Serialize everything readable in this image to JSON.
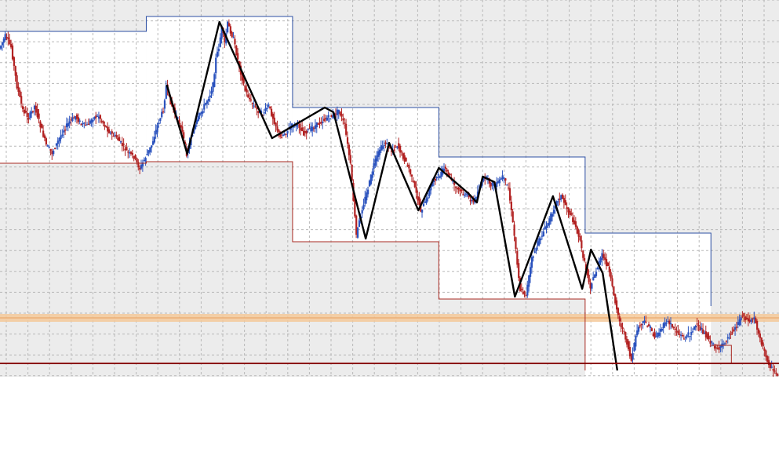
{
  "chart_data": {
    "type": "candlestick",
    "title": "",
    "xlabel": "",
    "ylabel": "",
    "background": "#ececec",
    "grid": true,
    "grid_style": "dashed",
    "colors": {
      "bull": "#2a52be",
      "bear": "#b22222",
      "upper_channel": "#2c4fa3",
      "lower_channel": "#a82a22",
      "zigzag": "#000000",
      "support_line": "#8b0000",
      "resistance_band": "#f5c99a",
      "grid": "#b8b8b8"
    },
    "price_path": [
      [
        0,
        62
      ],
      [
        2,
        46
      ],
      [
        4,
        60
      ],
      [
        6,
        110
      ],
      [
        8,
        140
      ],
      [
        10,
        150
      ],
      [
        12,
        135
      ],
      [
        14,
        160
      ],
      [
        16,
        185
      ],
      [
        18,
        195
      ],
      [
        20,
        180
      ],
      [
        22,
        165
      ],
      [
        24,
        155
      ],
      [
        26,
        148
      ],
      [
        28,
        158
      ],
      [
        30,
        160
      ],
      [
        32,
        150
      ],
      [
        34,
        148
      ],
      [
        36,
        160
      ],
      [
        38,
        170
      ],
      [
        40,
        175
      ],
      [
        42,
        185
      ],
      [
        44,
        195
      ],
      [
        46,
        200
      ],
      [
        48,
        215
      ],
      [
        50,
        200
      ],
      [
        52,
        185
      ],
      [
        54,
        160
      ],
      [
        56,
        140
      ],
      [
        57,
        110
      ],
      [
        58,
        125
      ],
      [
        60,
        145
      ],
      [
        62,
        160
      ],
      [
        64,
        196
      ],
      [
        66,
        170
      ],
      [
        68,
        150
      ],
      [
        70,
        135
      ],
      [
        72,
        120
      ],
      [
        73,
        108
      ],
      [
        74,
        75
      ],
      [
        75,
        60
      ],
      [
        76,
        35
      ],
      [
        77,
        55
      ],
      [
        78,
        30
      ],
      [
        80,
        50
      ],
      [
        82,
        85
      ],
      [
        84,
        115
      ],
      [
        86,
        130
      ],
      [
        88,
        140
      ],
      [
        90,
        145
      ],
      [
        92,
        135
      ],
      [
        94,
        155
      ],
      [
        96,
        175
      ],
      [
        98,
        168
      ],
      [
        100,
        160
      ],
      [
        102,
        158
      ],
      [
        104,
        170
      ],
      [
        106,
        165
      ],
      [
        108,
        160
      ],
      [
        110,
        155
      ],
      [
        112,
        150
      ],
      [
        114,
        148
      ],
      [
        116,
        140
      ],
      [
        118,
        160
      ],
      [
        120,
        210
      ],
      [
        122,
        300
      ],
      [
        124,
        265
      ],
      [
        126,
        240
      ],
      [
        128,
        210
      ],
      [
        130,
        190
      ],
      [
        132,
        182
      ],
      [
        134,
        192
      ],
      [
        136,
        185
      ],
      [
        138,
        200
      ],
      [
        140,
        215
      ],
      [
        142,
        240
      ],
      [
        144,
        268
      ],
      [
        146,
        255
      ],
      [
        148,
        230
      ],
      [
        150,
        225
      ],
      [
        152,
        215
      ],
      [
        154,
        225
      ],
      [
        156,
        240
      ],
      [
        158,
        245
      ],
      [
        160,
        250
      ],
      [
        162,
        258
      ],
      [
        164,
        240
      ],
      [
        166,
        225
      ],
      [
        168,
        235
      ],
      [
        170,
        235
      ],
      [
        172,
        225
      ],
      [
        174,
        240
      ],
      [
        176,
        300
      ],
      [
        178,
        370
      ],
      [
        180,
        375
      ],
      [
        182,
        330
      ],
      [
        184,
        310
      ],
      [
        186,
        295
      ],
      [
        188,
        280
      ],
      [
        190,
        260
      ],
      [
        192,
        250
      ],
      [
        194,
        265
      ],
      [
        196,
        280
      ],
      [
        198,
        300
      ],
      [
        200,
        335
      ],
      [
        202,
        365
      ],
      [
        204,
        345
      ],
      [
        206,
        325
      ],
      [
        208,
        340
      ],
      [
        210,
        375
      ],
      [
        212,
        410
      ],
      [
        214,
        430
      ],
      [
        216,
        460
      ],
      [
        218,
        420
      ],
      [
        220,
        410
      ],
      [
        222,
        415
      ],
      [
        224,
        430
      ],
      [
        226,
        420
      ],
      [
        228,
        410
      ],
      [
        230,
        415
      ],
      [
        232,
        425
      ],
      [
        234,
        430
      ],
      [
        236,
        425
      ],
      [
        238,
        415
      ],
      [
        240,
        420
      ],
      [
        242,
        430
      ],
      [
        244,
        440
      ],
      [
        246,
        445
      ],
      [
        248,
        435
      ],
      [
        250,
        425
      ],
      [
        252,
        415
      ],
      [
        254,
        400
      ],
      [
        256,
        410
      ],
      [
        258,
        405
      ],
      [
        260,
        430
      ],
      [
        262,
        455
      ],
      [
        264,
        470
      ],
      [
        266,
        478
      ]
    ],
    "zigzag": [
      [
        57,
        108
      ],
      [
        64,
        196
      ],
      [
        75,
        28
      ],
      [
        93,
        176
      ],
      [
        111,
        137
      ],
      [
        114,
        143
      ],
      [
        125,
        304
      ],
      [
        133,
        182
      ],
      [
        143,
        268
      ],
      [
        150,
        214
      ],
      [
        160,
        246
      ],
      [
        163,
        258
      ],
      [
        165,
        225
      ],
      [
        169,
        232
      ],
      [
        176,
        378
      ],
      [
        189,
        250
      ],
      [
        199,
        368
      ],
      [
        202,
        318
      ],
      [
        206,
        348
      ],
      [
        211,
        472
      ]
    ],
    "upper_channel": [
      [
        0,
        40
      ],
      [
        50,
        40
      ],
      [
        50,
        21
      ],
      [
        100,
        21
      ],
      [
        100,
        137
      ],
      [
        150,
        137
      ],
      [
        150,
        200
      ],
      [
        200,
        200
      ],
      [
        200,
        297
      ],
      [
        243,
        297
      ],
      [
        243,
        390
      ]
    ],
    "lower_channel": [
      [
        0,
        208
      ],
      [
        50,
        208
      ],
      [
        50,
        206
      ],
      [
        100,
        206
      ],
      [
        100,
        308
      ],
      [
        150,
        308
      ],
      [
        150,
        381
      ],
      [
        200,
        381
      ],
      [
        200,
        472
      ]
    ],
    "extra_lines": [
      [
        [
          243,
          440
        ],
        [
          250,
          440
        ],
        [
          250,
          462
        ]
      ]
    ],
    "resistance_band": [
      400,
      410
    ],
    "support_level": 463,
    "x_range": [
      0,
      266
    ],
    "y_range": [
      0,
      480
    ]
  }
}
